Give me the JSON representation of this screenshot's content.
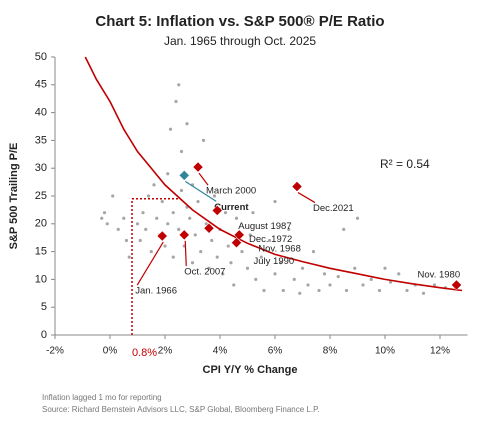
{
  "chart_data": {
    "type": "scatter",
    "title": "Chart 5: Inflation vs. S&P 500® P/E Ratio",
    "subtitle": "Jan. 1965 through Oct. 2025",
    "x_label": "CPI Y/Y % Change",
    "y_label": "S&P 500 Trailing P/E",
    "annotation": "R² = 0.54",
    "notes": [
      "Inflation lagged 1 mo for reporting",
      "Source: Richard Bernstein Advisors LLC, S&P Global, Bloomberg Finance L.P."
    ],
    "xlim": [
      -2,
      13
    ],
    "ylim": [
      0,
      50
    ],
    "grid": false,
    "xticks": [
      {
        "value": -2,
        "label": "-2%"
      },
      {
        "value": 0,
        "label": "0%"
      },
      {
        "value": 2,
        "label": "2%"
      },
      {
        "value": 4,
        "label": "4%"
      },
      {
        "value": 6,
        "label": "6%"
      },
      {
        "value": 8,
        "label": "8%"
      },
      {
        "value": 10,
        "label": "10%"
      },
      {
        "value": 12,
        "label": "12%"
      }
    ],
    "yticks": [
      0,
      5,
      10,
      15,
      20,
      25,
      30,
      35,
      40,
      45,
      50
    ],
    "scatter": {
      "color": "#a6a6a6",
      "x": [
        -0.3,
        -0.1,
        -0.2,
        0.1,
        0.3,
        0.5,
        0.6,
        0.7,
        1.0,
        1.1,
        1.2,
        1.3,
        1.4,
        1.5,
        1.6,
        1.7,
        1.8,
        1.9,
        2.0,
        2.1,
        2.1,
        2.2,
        2.3,
        2.3,
        2.4,
        2.5,
        2.5,
        2.6,
        2.6,
        2.7,
        2.8,
        2.8,
        2.9,
        3.0,
        3.0,
        3.1,
        3.2,
        3.3,
        3.4,
        3.5,
        3.6,
        3.7,
        3.8,
        3.9,
        4.0,
        4.1,
        4.2,
        4.3,
        4.4,
        4.5,
        4.6,
        4.8,
        5.0,
        5.1,
        5.3,
        5.5,
        5.6,
        5.8,
        6.0,
        6.2,
        6.3,
        6.5,
        6.7,
        6.9,
        7.0,
        7.2,
        7.4,
        7.6,
        7.8,
        8.0,
        8.3,
        8.6,
        8.9,
        9.2,
        9.5,
        9.8,
        10.2,
        10.5,
        10.8,
        11.1,
        11.4,
        11.8,
        12.2,
        8.5,
        9.0,
        10.0,
        5.2,
        6.0
      ],
      "values": [
        21,
        20,
        22,
        25,
        19,
        21,
        17,
        14,
        20,
        17,
        22,
        19,
        25,
        15,
        27,
        21,
        18,
        24,
        16,
        29,
        20,
        37,
        22,
        14,
        42,
        45,
        19,
        26,
        33,
        16,
        23,
        38,
        21,
        13,
        27,
        18,
        24,
        15,
        35,
        20,
        12,
        17,
        25,
        14,
        19,
        11,
        22,
        16,
        13,
        9,
        21,
        15,
        12,
        18,
        10,
        14,
        8,
        17,
        11,
        13,
        8,
        19,
        10,
        7.5,
        12,
        9,
        15,
        8,
        11,
        9,
        10.5,
        8,
        12,
        9,
        10,
        8,
        9.5,
        11,
        8,
        9,
        7.5,
        9,
        8.5,
        19,
        21,
        12,
        22,
        24
      ]
    },
    "highlights": [
      {
        "label": "March 2000",
        "x": 3.2,
        "y": 30.2,
        "color": "#c00000"
      },
      {
        "label": "Current",
        "x": 2.7,
        "y": 28.7,
        "color": "#31849b"
      },
      {
        "label": "Dec.2021",
        "x": 6.8,
        "y": 26.7,
        "color": "#c00000"
      },
      {
        "label": "August 1987",
        "x": 3.9,
        "y": 22.4,
        "color": "#c00000"
      },
      {
        "label": "Dec. 1972",
        "x": 3.6,
        "y": 19.2,
        "color": "#c00000"
      },
      {
        "label": "Nov. 1968",
        "x": 4.7,
        "y": 18,
        "color": "#c00000"
      },
      {
        "label": "July 1990",
        "x": 4.6,
        "y": 16.6,
        "color": "#c00000"
      },
      {
        "label": "Oct. 2007",
        "x": 2.7,
        "y": 18,
        "color": "#c00000"
      },
      {
        "label": "Jan. 1966",
        "x": 1.9,
        "y": 17.8,
        "color": "#c00000"
      },
      {
        "label": "Nov. 1980",
        "x": 12.6,
        "y": 9,
        "color": "#c00000"
      }
    ],
    "fit": {
      "color": "#c00000",
      "x": [
        -0.9,
        -0.5,
        0,
        0.5,
        1,
        1.5,
        2,
        3,
        4,
        5,
        6,
        7,
        8,
        9,
        10,
        11,
        12,
        12.8
      ],
      "values": [
        50,
        46,
        42,
        37,
        33,
        30,
        27,
        22.5,
        19,
        16.5,
        14.5,
        13.2,
        12,
        11,
        10,
        9.2,
        8.5,
        8
      ]
    },
    "reference": {
      "x": {
        "value": 0.8,
        "label": "0.8%"
      },
      "y": 24.5,
      "x_end": 2.5,
      "color": "#c00000"
    }
  }
}
